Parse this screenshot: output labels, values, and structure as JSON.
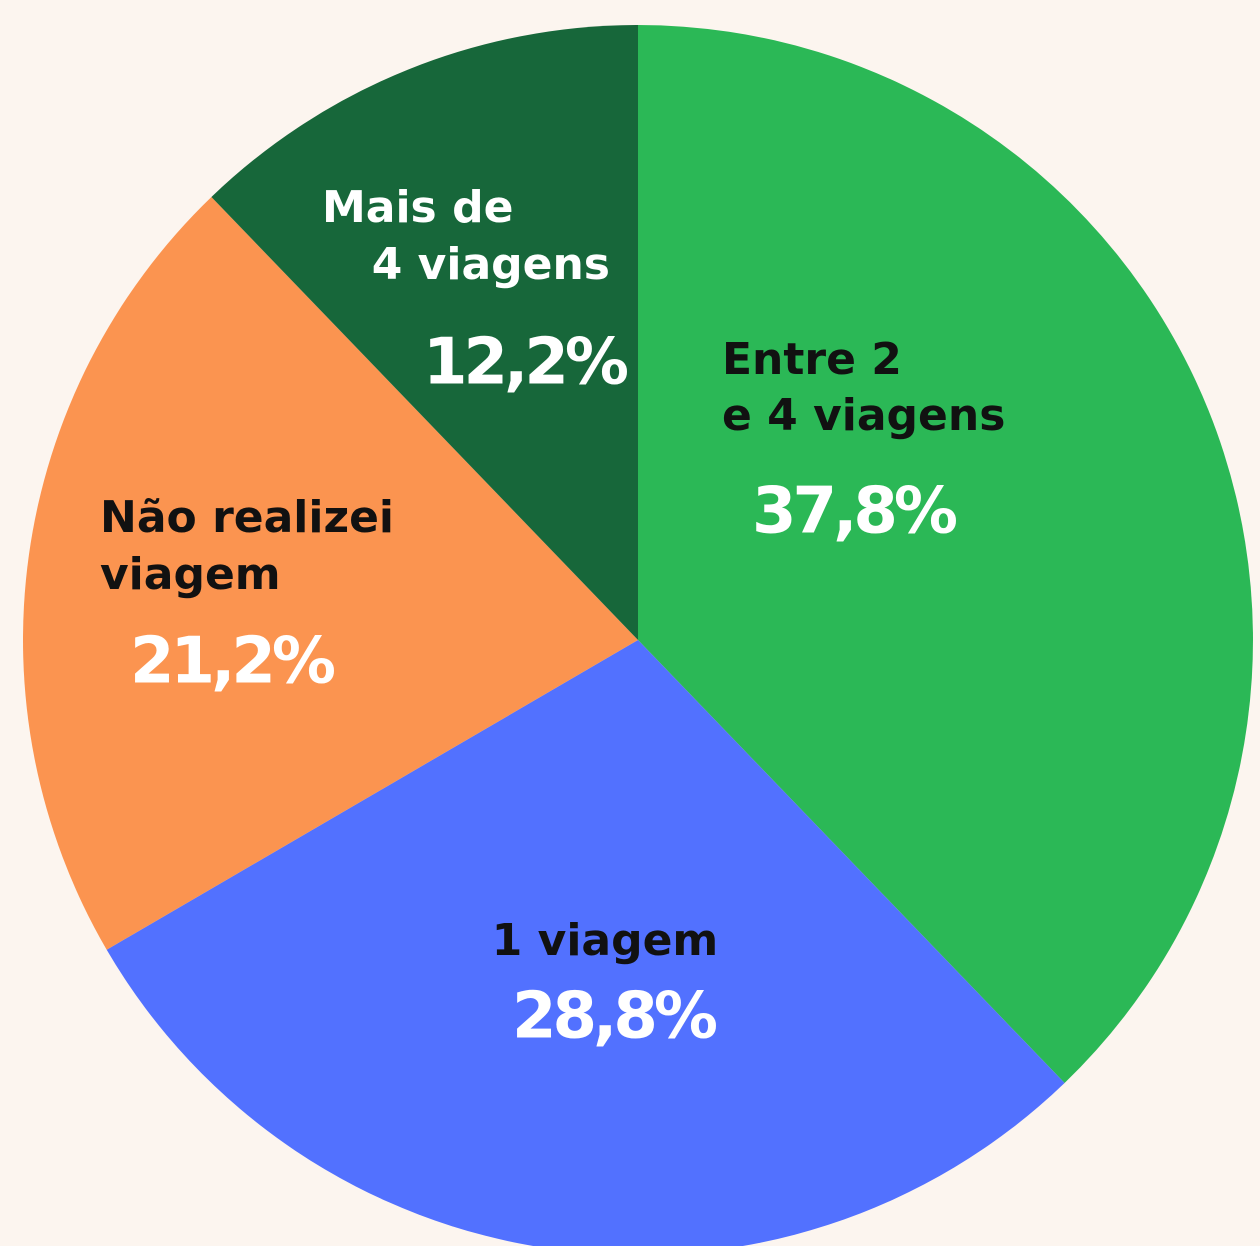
{
  "chart_data": {
    "type": "pie",
    "categories": [
      [
        "Entre 2",
        "e 4 viagens"
      ],
      [
        "1 viagem"
      ],
      [
        "Não realizei",
        "viagem"
      ],
      [
        "Mais de",
        "4 viagens"
      ]
    ],
    "values": [
      37.8,
      28.8,
      21.2,
      12.2
    ],
    "value_labels": [
      "37,8%",
      "28,8%",
      "21,2%",
      "12,2%"
    ],
    "colors": [
      "#2bb856",
      "#5271ff",
      "#fb9450",
      "#17673a"
    ],
    "start_angle": 0,
    "direction": "clockwise"
  }
}
